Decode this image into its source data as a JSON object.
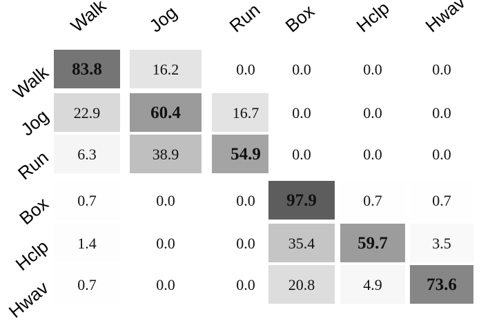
{
  "chart_data": {
    "type": "heatmap",
    "columns": [
      "Walk",
      "Jog",
      "Run",
      "Box",
      "Hclp",
      "Hwav"
    ],
    "rows": [
      "Walk",
      "Jog",
      "Run",
      "Box",
      "Hclp",
      "Hwav"
    ],
    "values": [
      [
        "83.8",
        "16.2",
        "0.0",
        "0.0",
        "0.0",
        "0.0"
      ],
      [
        "22.9",
        "60.4",
        "16.7",
        "0.0",
        "0.0",
        "0.0"
      ],
      [
        "6.3",
        "38.9",
        "54.9",
        "0.0",
        "0.0",
        "0.0"
      ],
      [
        "0.7",
        "0.0",
        "0.0",
        "97.9",
        "0.7",
        "0.7"
      ],
      [
        "1.4",
        "0.0",
        "0.0",
        "35.4",
        "59.7",
        "3.5"
      ],
      [
        "0.7",
        "0.0",
        "0.0",
        "20.8",
        "4.9",
        "73.6"
      ]
    ],
    "value_range": [
      0,
      100
    ],
    "colormap": "white-to-gray",
    "diagonal_bold": true
  }
}
